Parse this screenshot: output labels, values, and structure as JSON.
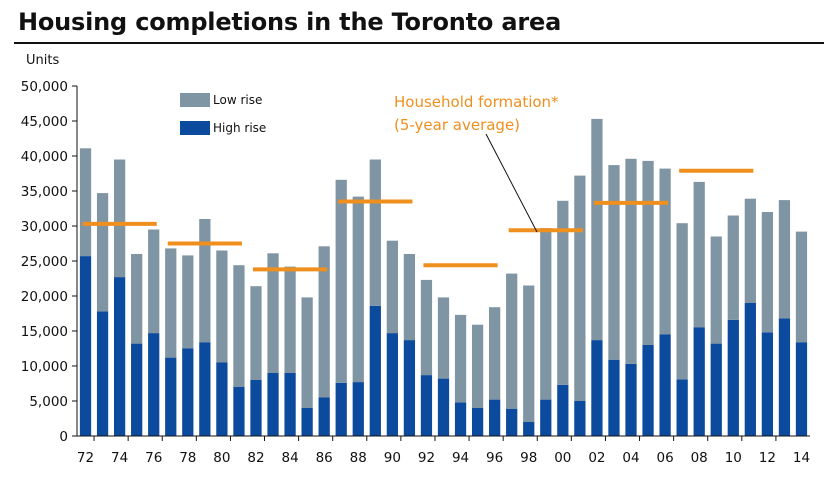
{
  "chart_data": {
    "type": "bar",
    "stacked": true,
    "title": "Housing completions in the Toronto area",
    "ylabel": "Units",
    "ylim": [
      0,
      50000
    ],
    "yticks": [
      0,
      5000,
      10000,
      15000,
      20000,
      25000,
      30000,
      35000,
      40000,
      45000,
      50000
    ],
    "ytick_labels": [
      "0",
      "5,000",
      "10,000",
      "15,000",
      "20,000",
      "25,000",
      "30,000",
      "35,000",
      "40,000",
      "45,000",
      "50,000"
    ],
    "categories": [
      "72",
      "73",
      "74",
      "75",
      "76",
      "77",
      "78",
      "79",
      "80",
      "81",
      "82",
      "83",
      "84",
      "85",
      "86",
      "87",
      "88",
      "89",
      "90",
      "91",
      "92",
      "93",
      "94",
      "95",
      "96",
      "97",
      "98",
      "99",
      "00",
      "01",
      "02",
      "03",
      "04",
      "05",
      "06",
      "07",
      "08",
      "09",
      "10",
      "11",
      "12",
      "13",
      "14"
    ],
    "xtick_labels": [
      "72",
      "74",
      "76",
      "78",
      "80",
      "82",
      "84",
      "86",
      "88",
      "90",
      "92",
      "94",
      "96",
      "98",
      "00",
      "02",
      "04",
      "06",
      "08",
      "10",
      "12",
      "14"
    ],
    "series": [
      {
        "name": "High rise",
        "color": "#0b4a9c",
        "values": [
          25700,
          17800,
          22700,
          13200,
          14700,
          11200,
          12500,
          13400,
          10500,
          7000,
          8000,
          9000,
          9000,
          4000,
          5500,
          7600,
          7700,
          18600,
          14700,
          13700,
          8700,
          8200,
          4800,
          4000,
          5200,
          3900,
          2000,
          5200,
          7300,
          5000,
          13700,
          10900,
          10300,
          13000,
          14500,
          8100,
          15500,
          13200,
          16600,
          19000,
          14800,
          16800,
          13400
        ]
      },
      {
        "name": "Low rise",
        "color": "#7f95a4",
        "values": [
          15400,
          16900,
          16800,
          12800,
          14800,
          15600,
          13300,
          17600,
          16000,
          17400,
          13400,
          17100,
          15200,
          15800,
          21600,
          29000,
          26500,
          20900,
          13200,
          12300,
          13600,
          11600,
          12500,
          11900,
          13200,
          19300,
          19500,
          24500,
          26300,
          32200,
          31600,
          27800,
          29300,
          26300,
          23700,
          22300,
          20800,
          15300,
          14900,
          14900,
          17200,
          16900,
          15800
        ]
      }
    ],
    "reference_series": {
      "name": "Household formation* (5-year average)",
      "color": "#ef8f1e",
      "segments": [
        {
          "from": "72",
          "to": "76",
          "value": 30300
        },
        {
          "from": "77",
          "to": "81",
          "value": 27500
        },
        {
          "from": "82",
          "to": "86",
          "value": 23800
        },
        {
          "from": "87",
          "to": "91",
          "value": 33500
        },
        {
          "from": "92",
          "to": "96",
          "value": 24400
        },
        {
          "from": "97",
          "to": "01",
          "value": 29400
        },
        {
          "from": "02",
          "to": "06",
          "value": 33300
        },
        {
          "from": "07",
          "to": "11",
          "value": 37900
        }
      ]
    },
    "legend": [
      {
        "label": "Low rise",
        "color": "#7f95a4"
      },
      {
        "label": "High rise",
        "color": "#0b4a9c"
      }
    ],
    "annotation": {
      "line1": "Household formation*",
      "line2": "(5-year average)"
    }
  }
}
